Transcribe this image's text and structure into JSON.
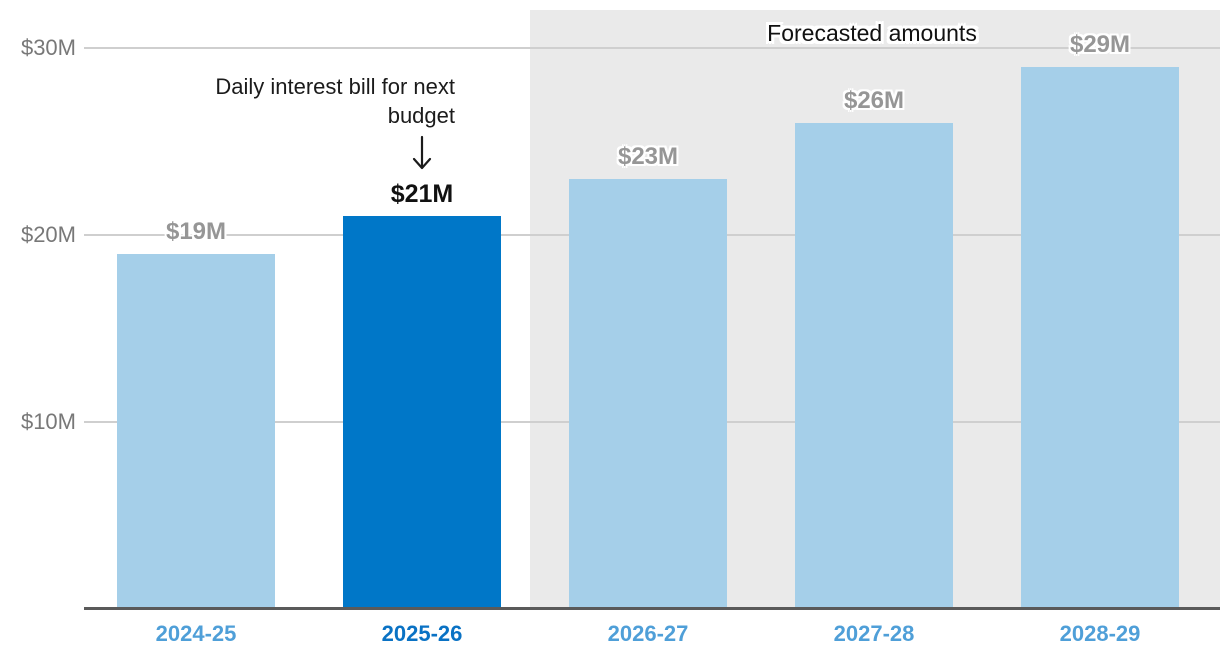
{
  "chart_data": {
    "type": "bar",
    "categories": [
      "2024-25",
      "2025-26",
      "2026-27",
      "2027-28",
      "2028-29"
    ],
    "values": [
      19,
      21,
      23,
      26,
      29
    ],
    "value_labels": [
      "$19M",
      "$21M",
      "$23M",
      "$26M",
      "$29M"
    ],
    "highlight_index": 1,
    "forecast": {
      "label": "Forecasted amounts",
      "start_index": 2,
      "end_index": 4
    },
    "annotation": {
      "lines": [
        "Daily interest bill for next",
        "budget"
      ],
      "target_category": "2025-26"
    },
    "y_ticks": [
      {
        "value": 30,
        "label": "$30M"
      },
      {
        "value": 20,
        "label": "$20M"
      },
      {
        "value": 10,
        "label": "$10M"
      }
    ],
    "ylim": [
      0,
      32.5
    ],
    "grid": true,
    "legend": null,
    "colors": {
      "bar": "#a5cfe9",
      "bar_highlight": "#0077c8",
      "x_label": "#4f9fd8",
      "x_label_highlight": "#0a72c4",
      "y_label": "#787878",
      "value_label": "#969696",
      "value_label_highlight": "#111111",
      "grid_line": "#cfcfcf",
      "axis_line": "#5a5a5a",
      "forecast_bg": "#eaeaea",
      "annotation_text": "#1b1b1b"
    }
  }
}
